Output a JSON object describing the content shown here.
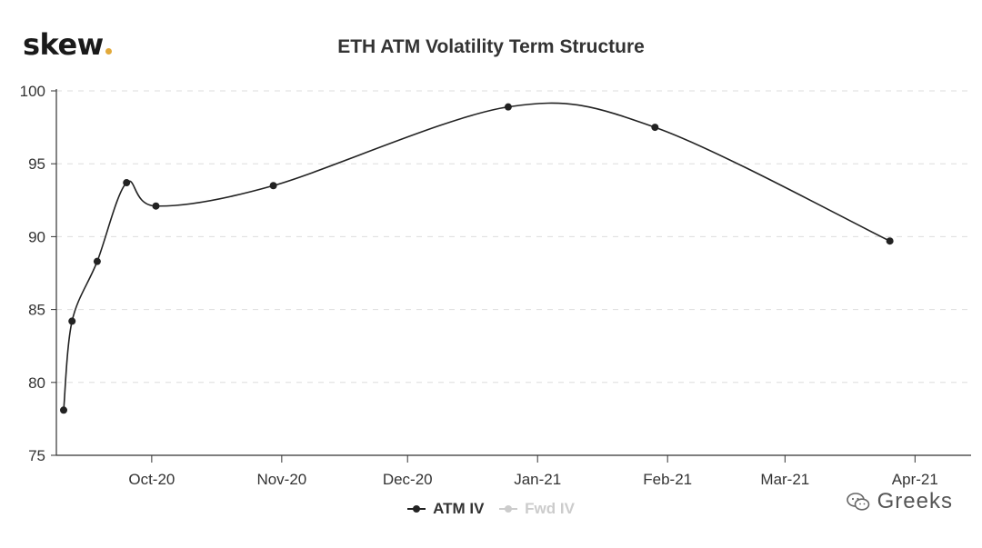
{
  "logo": {
    "text": "skew",
    "dot_color": "#e2a93a"
  },
  "chart_data": {
    "type": "line",
    "title": "ETH ATM Volatility Term Structure",
    "xlabel": "",
    "ylabel": "",
    "x_ticks": [
      "Oct-20",
      "Nov-20",
      "Dec-20",
      "Jan-21",
      "Feb-21",
      "Mar-21",
      "Apr-21"
    ],
    "y_ticks": [
      75,
      80,
      85,
      90,
      95,
      100
    ],
    "ylim": [
      75,
      100
    ],
    "xlim": [
      "2020-09-10",
      "2021-04-07"
    ],
    "grid": "horizontal dashed",
    "legend_position": "bottom",
    "series": [
      {
        "name": "ATM IV",
        "color": "#222222",
        "visible": true,
        "points": [
          {
            "x": "2020-09-10",
            "y": 78.1
          },
          {
            "x": "2020-09-12",
            "y": 84.2
          },
          {
            "x": "2020-09-18",
            "y": 88.3
          },
          {
            "x": "2020-09-25",
            "y": 93.7
          },
          {
            "x": "2020-10-02",
            "y": 92.1
          },
          {
            "x": "2020-10-30",
            "y": 93.5
          },
          {
            "x": "2020-12-25",
            "y": 98.9
          },
          {
            "x": "2021-01-29",
            "y": 97.5
          },
          {
            "x": "2021-03-26",
            "y": 89.7
          }
        ]
      },
      {
        "name": "Fwd IV",
        "color": "#cccccc",
        "visible": false,
        "points": []
      }
    ]
  },
  "watermark": {
    "text": "Greeks"
  }
}
